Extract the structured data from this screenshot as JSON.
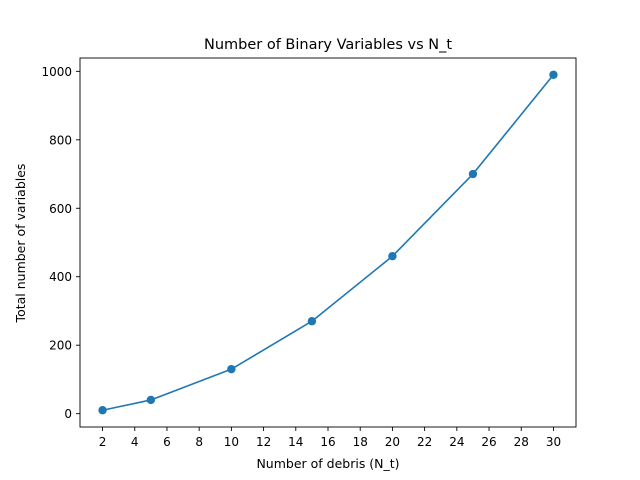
{
  "chart_data": {
    "type": "line",
    "title": "Number of Binary Variables vs N_t",
    "xlabel": "Number of debris (N_t)",
    "ylabel": "Total number of variables",
    "xlim": [
      0.6,
      31.4
    ],
    "ylim": [
      -39,
      1039
    ],
    "xticks": [
      2,
      4,
      6,
      8,
      10,
      12,
      14,
      16,
      18,
      20,
      22,
      24,
      26,
      28,
      30
    ],
    "yticks": [
      0,
      200,
      400,
      600,
      800,
      1000
    ],
    "grid": false,
    "marker": "circle",
    "series": [
      {
        "color": "#1f77b4",
        "x": [
          2,
          5,
          10,
          15,
          20,
          25,
          30
        ],
        "y": [
          10,
          40,
          130,
          270,
          460,
          700,
          990
        ]
      }
    ]
  }
}
